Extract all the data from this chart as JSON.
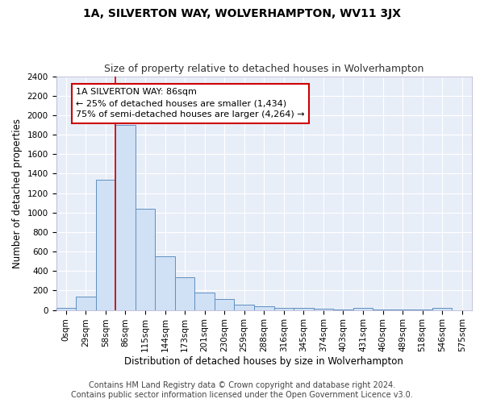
{
  "title": "1A, SILVERTON WAY, WOLVERHAMPTON, WV11 3JX",
  "subtitle": "Size of property relative to detached houses in Wolverhampton",
  "xlabel": "Distribution of detached houses by size in Wolverhampton",
  "ylabel": "Number of detached properties",
  "categories": [
    "0sqm",
    "29sqm",
    "58sqm",
    "86sqm",
    "115sqm",
    "144sqm",
    "173sqm",
    "201sqm",
    "230sqm",
    "259sqm",
    "288sqm",
    "316sqm",
    "345sqm",
    "374sqm",
    "403sqm",
    "431sqm",
    "460sqm",
    "489sqm",
    "518sqm",
    "546sqm",
    "575sqm"
  ],
  "values": [
    20,
    140,
    1340,
    1900,
    1040,
    550,
    340,
    175,
    115,
    55,
    35,
    25,
    20,
    15,
    5,
    20,
    5,
    5,
    5,
    20,
    0
  ],
  "bar_color": "#d0e0f5",
  "bar_edge_color": "#6090c0",
  "red_line_index": 3,
  "ylim": [
    0,
    2400
  ],
  "yticks": [
    0,
    200,
    400,
    600,
    800,
    1000,
    1200,
    1400,
    1600,
    1800,
    2000,
    2200,
    2400
  ],
  "annotation_text": "1A SILVERTON WAY: 86sqm\n← 25% of detached houses are smaller (1,434)\n75% of semi-detached houses are larger (4,264) →",
  "annotation_box_color": "#ffffff",
  "annotation_box_edge_color": "#cc0000",
  "footer_line1": "Contains HM Land Registry data © Crown copyright and database right 2024.",
  "footer_line2": "Contains public sector information licensed under the Open Government Licence v3.0.",
  "background_color": "#e8eef8",
  "grid_color": "#ffffff",
  "title_fontsize": 10,
  "subtitle_fontsize": 9,
  "axis_label_fontsize": 8.5,
  "tick_fontsize": 7.5,
  "annotation_fontsize": 8,
  "footer_fontsize": 7
}
